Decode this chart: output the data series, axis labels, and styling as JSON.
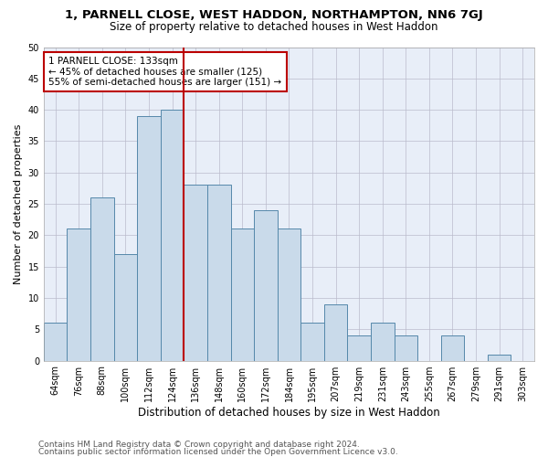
{
  "title1": "1, PARNELL CLOSE, WEST HADDON, NORTHAMPTON, NN6 7GJ",
  "title2": "Size of property relative to detached houses in West Haddon",
  "xlabel": "Distribution of detached houses by size in West Haddon",
  "ylabel": "Number of detached properties",
  "categories": [
    "64sqm",
    "76sqm",
    "88sqm",
    "100sqm",
    "112sqm",
    "124sqm",
    "136sqm",
    "148sqm",
    "160sqm",
    "172sqm",
    "184sqm",
    "195sqm",
    "207sqm",
    "219sqm",
    "231sqm",
    "243sqm",
    "255sqm",
    "267sqm",
    "279sqm",
    "291sqm",
    "303sqm"
  ],
  "values": [
    6,
    21,
    26,
    17,
    39,
    40,
    28,
    28,
    21,
    24,
    21,
    6,
    9,
    4,
    6,
    4,
    0,
    4,
    0,
    1,
    0
  ],
  "bar_color": "#c9daea",
  "bar_edge_color": "#5588aa",
  "grid_color": "#bbbbcc",
  "bg_color": "#e8eef8",
  "vline_x": 5.5,
  "vline_color": "#bb0000",
  "annotation_text": "1 PARNELL CLOSE: 133sqm\n← 45% of detached houses are smaller (125)\n55% of semi-detached houses are larger (151) →",
  "annotation_box_color": "#ffffff",
  "annotation_box_edge": "#bb0000",
  "ylim": [
    0,
    50
  ],
  "yticks": [
    0,
    5,
    10,
    15,
    20,
    25,
    30,
    35,
    40,
    45,
    50
  ],
  "footer1": "Contains HM Land Registry data © Crown copyright and database right 2024.",
  "footer2": "Contains public sector information licensed under the Open Government Licence v3.0.",
  "title1_fontsize": 9.5,
  "title2_fontsize": 8.5,
  "xlabel_fontsize": 8.5,
  "ylabel_fontsize": 8,
  "tick_fontsize": 7,
  "annotation_fontsize": 7.5,
  "footer_fontsize": 6.5
}
